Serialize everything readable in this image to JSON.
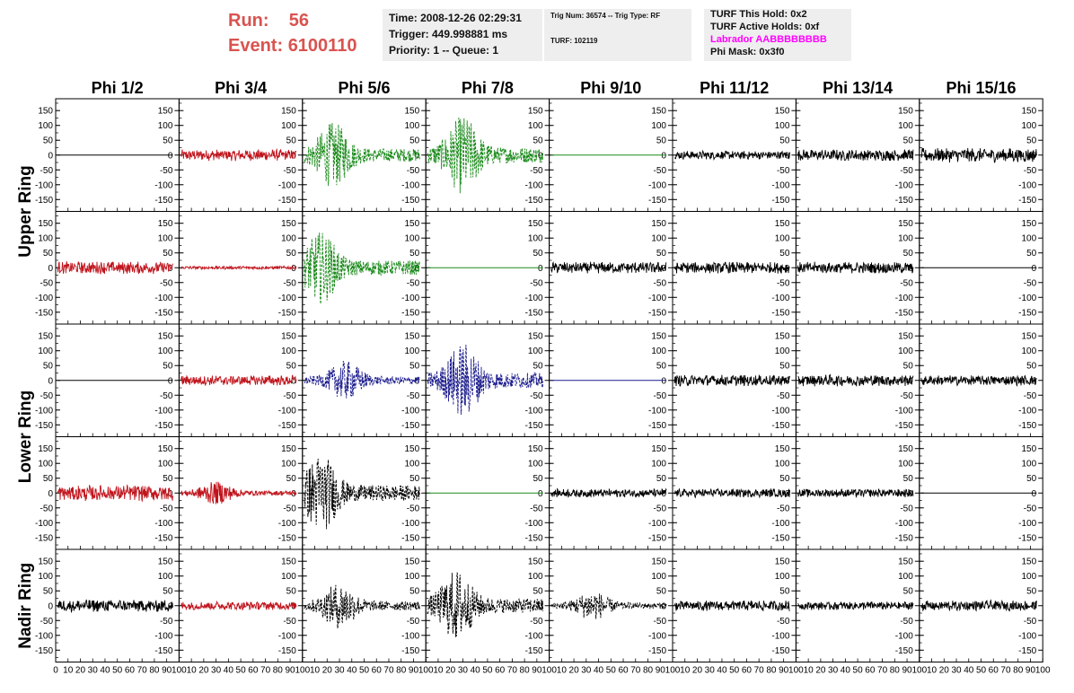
{
  "header": {
    "run_label": "Run:",
    "run_value": "56",
    "event_label": "Event:",
    "event_value": "6100110",
    "time_text": "Time: 2008-12-26 02:29:31",
    "trigger_text": "Trigger: 449.998881 ms",
    "priority_text": "Priority: 1 -- Queue: 1",
    "trig_num_text": "Trig Num: 36574 -- Trig Type: RF",
    "turf_text": "TURF: 102119",
    "turf_this_hold": "TURF This Hold: 0x2",
    "turf_active_holds": "TURF Active Holds: 0xf",
    "labrador_text": "Labrador AABBBBBBBB",
    "phi_mask_text": "Phi Mask: 0x3f0"
  },
  "colors": {
    "run_text": "#d9534f",
    "labrador_text": "#ff00ff",
    "info_box_bg": "#eeeeee",
    "black_trace": "#000000",
    "red_trace": "#c0141c",
    "green_trace": "#1a8a1a",
    "blue_trace": "#1a1a8c"
  },
  "chart_data": {
    "type": "line",
    "columns": [
      "Phi 1/2",
      "Phi 3/4",
      "Phi 5/6",
      "Phi 7/8",
      "Phi 9/10",
      "Phi 11/12",
      "Phi 13/14",
      "Phi 15/16"
    ],
    "ring_labels": [
      "Upper Ring",
      "Lower Ring",
      "Nadir Ring"
    ],
    "xlim": [
      0,
      100
    ],
    "ylim": [
      -190,
      190
    ],
    "y_ticks": [
      -150,
      -100,
      -50,
      0,
      50,
      100,
      150
    ],
    "x_ticks": [
      0,
      10,
      20,
      30,
      40,
      50,
      60,
      70,
      80,
      90,
      100
    ],
    "trace_grid": [
      [
        {
          "color": "black",
          "amp": 0,
          "style": "flat"
        },
        {
          "color": "red",
          "amp": 20,
          "style": "noise"
        },
        {
          "color": "green",
          "amp": 100,
          "style": "pulse",
          "center": 25
        },
        {
          "color": "green",
          "amp": 120,
          "style": "pulse",
          "center": 30
        },
        {
          "color": "green",
          "amp": 0,
          "style": "flat"
        },
        {
          "color": "black",
          "amp": 15,
          "style": "noise"
        },
        {
          "color": "black",
          "amp": 20,
          "style": "noise"
        },
        {
          "color": "black",
          "amp": 25,
          "style": "noise"
        }
      ],
      [
        {
          "color": "red",
          "amp": 22,
          "style": "noise"
        },
        {
          "color": "red",
          "amp": 6,
          "style": "noise"
        },
        {
          "color": "green",
          "amp": 110,
          "style": "pulse",
          "center": 15
        },
        {
          "color": "green",
          "amp": 0,
          "style": "flat"
        },
        {
          "color": "black",
          "amp": 20,
          "style": "noise"
        },
        {
          "color": "black",
          "amp": 20,
          "style": "noise"
        },
        {
          "color": "black",
          "amp": 20,
          "style": "noise"
        },
        {
          "color": "black",
          "amp": 0,
          "style": "flat"
        }
      ],
      [
        {
          "color": "black",
          "amp": 0,
          "style": "flat"
        },
        {
          "color": "red",
          "amp": 18,
          "style": "noise"
        },
        {
          "color": "blue",
          "amp": 60,
          "style": "pulse",
          "center": 35
        },
        {
          "color": "blue",
          "amp": 115,
          "style": "pulse",
          "center": 30
        },
        {
          "color": "blue",
          "amp": 0,
          "style": "flat"
        },
        {
          "color": "black",
          "amp": 20,
          "style": "noise"
        },
        {
          "color": "black",
          "amp": 20,
          "style": "noise"
        },
        {
          "color": "black",
          "amp": 18,
          "style": "noise"
        }
      ],
      [
        {
          "color": "red",
          "amp": 28,
          "style": "noise"
        },
        {
          "color": "red",
          "amp": 35,
          "style": "pulse",
          "center": 30
        },
        {
          "color": "black",
          "amp": 120,
          "style": "pulse",
          "center": 15
        },
        {
          "color": "green",
          "amp": 0,
          "style": "flat"
        },
        {
          "color": "black",
          "amp": 15,
          "style": "noise"
        },
        {
          "color": "black",
          "amp": 15,
          "style": "noise"
        },
        {
          "color": "black",
          "amp": 15,
          "style": "noise"
        },
        {
          "color": "black",
          "amp": 0,
          "style": "flat"
        }
      ],
      [
        {
          "color": "black",
          "amp": 22,
          "style": "noise"
        },
        {
          "color": "red",
          "amp": 15,
          "style": "noise"
        },
        {
          "color": "black",
          "amp": 70,
          "style": "pulse",
          "center": 30
        },
        {
          "color": "black",
          "amp": 110,
          "style": "pulse",
          "center": 25
        },
        {
          "color": "black",
          "amp": 45,
          "style": "pulse",
          "center": 35
        },
        {
          "color": "black",
          "amp": 18,
          "style": "noise"
        },
        {
          "color": "black",
          "amp": 15,
          "style": "noise"
        },
        {
          "color": "black",
          "amp": 18,
          "style": "noise"
        }
      ]
    ]
  }
}
